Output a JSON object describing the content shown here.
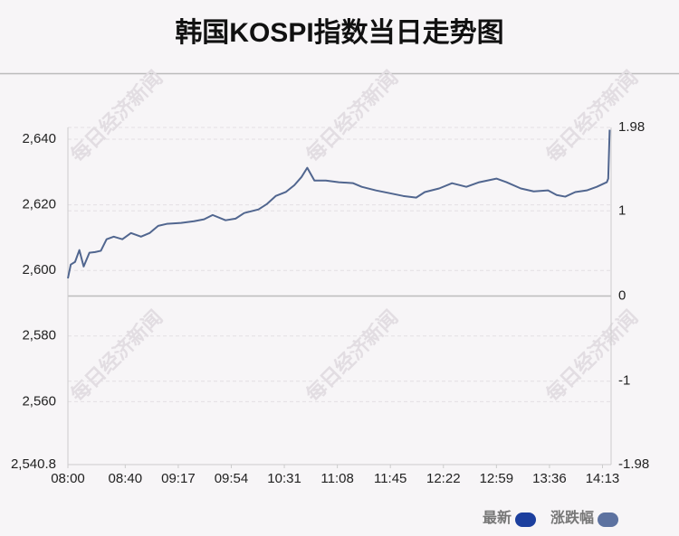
{
  "chart_data": {
    "type": "line",
    "title": "韩国KOSPI指数当日走势图",
    "watermark": "每日经济新闻",
    "x": [
      "08:00",
      "08:02",
      "08:05",
      "08:08",
      "08:11",
      "08:15",
      "08:19",
      "08:23",
      "08:27",
      "08:32",
      "08:38",
      "08:44",
      "08:51",
      "08:57",
      "09:03",
      "09:09",
      "09:19",
      "09:28",
      "09:35",
      "09:41",
      "09:50",
      "09:57",
      "10:03",
      "10:13",
      "10:19",
      "10:25",
      "10:32",
      "10:38",
      "10:43",
      "10:47",
      "10:52",
      "11:00",
      "11:09",
      "11:19",
      "11:25",
      "11:35",
      "11:44",
      "11:54",
      "12:03",
      "12:09",
      "12:19",
      "12:28",
      "12:38",
      "12:47",
      "12:59",
      "13:06",
      "13:16",
      "13:25",
      "13:35",
      "13:41",
      "13:47",
      "13:54",
      "14:02",
      "14:09",
      "14:16",
      "14:17",
      "14:18"
    ],
    "series": [
      {
        "name": "最新",
        "color": "#51668f",
        "values": [
          2597.6,
          2601.8,
          2602.6,
          2606.2,
          2601.2,
          2605.4,
          2605.6,
          2606.0,
          2609.5,
          2610.3,
          2609.5,
          2611.4,
          2610.3,
          2611.4,
          2613.6,
          2614.2,
          2614.5,
          2615.0,
          2615.6,
          2616.9,
          2615.3,
          2615.8,
          2617.5,
          2618.6,
          2620.3,
          2622.7,
          2623.9,
          2626.0,
          2628.5,
          2631.3,
          2627.4,
          2627.4,
          2626.9,
          2626.6,
          2625.5,
          2624.4,
          2623.6,
          2622.7,
          2622.2,
          2623.9,
          2625.0,
          2626.6,
          2625.5,
          2626.9,
          2628.0,
          2626.9,
          2625.0,
          2624.1,
          2624.4,
          2623.0,
          2622.5,
          2623.9,
          2624.4,
          2625.5,
          2626.9,
          2628.0,
          2642.9
        ]
      }
    ],
    "legend": [
      {
        "name": "最新",
        "color": "#1c3f9e"
      },
      {
        "name": "涨跌幅",
        "color": "#5d72a0"
      }
    ],
    "xlim": [
      "08:00",
      "14:19"
    ],
    "xticks": [
      "08:00",
      "08:40",
      "09:17",
      "09:54",
      "10:31",
      "11:08",
      "11:45",
      "12:22",
      "12:59",
      "13:36",
      "14:13"
    ],
    "ylim": [
      2540.8,
      2643.6
    ],
    "yticks": [
      {
        "value": 2540.8,
        "label": "2,540.8"
      },
      {
        "value": 2560,
        "label": "2,560"
      },
      {
        "value": 2580,
        "label": "2,580"
      },
      {
        "value": 2600,
        "label": "2,600"
      },
      {
        "value": 2620,
        "label": "2,620"
      },
      {
        "value": 2640,
        "label": "2,640"
      }
    ],
    "y2lim": [
      -1.98,
      1.98
    ],
    "y2ticks": [
      -1.98,
      -1,
      0,
      1,
      1.98
    ],
    "grid": true
  }
}
